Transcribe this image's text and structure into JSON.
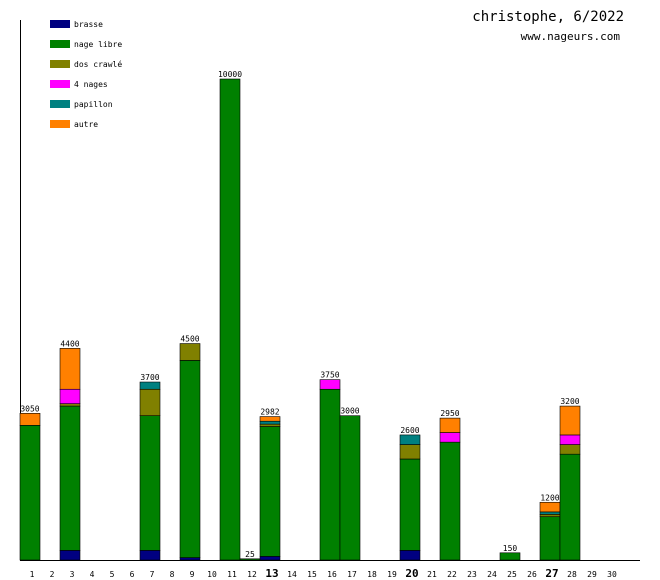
{
  "header": {
    "title": "christophe, 6/2022",
    "subtitle": "www.nageurs.com"
  },
  "chart_data": {
    "type": "bar",
    "stacked": true,
    "ylim": [
      0,
      10000
    ],
    "grid": false,
    "legend_position": "top-left",
    "categories": [
      "1",
      "2",
      "3",
      "4",
      "5",
      "6",
      "7",
      "8",
      "9",
      "10",
      "11",
      "12",
      "13",
      "14",
      "15",
      "16",
      "17",
      "18",
      "19",
      "20",
      "21",
      "22",
      "23",
      "24",
      "25",
      "26",
      "27",
      "28",
      "29",
      "30"
    ],
    "bold_categories": [
      "13",
      "20",
      "27"
    ],
    "totals": [
      3050,
      0,
      4400,
      0,
      0,
      0,
      3700,
      0,
      4500,
      0,
      10000,
      25,
      2982,
      0,
      0,
      3750,
      3000,
      0,
      0,
      2600,
      0,
      2950,
      0,
      0,
      150,
      0,
      1200,
      3200,
      0,
      0
    ],
    "series": [
      {
        "name": "brasse",
        "color": "#000080",
        "values": [
          0,
          0,
          200,
          0,
          0,
          0,
          200,
          0,
          50,
          0,
          0,
          0,
          75,
          0,
          0,
          0,
          0,
          0,
          0,
          200,
          0,
          0,
          0,
          0,
          0,
          0,
          0,
          0,
          0,
          0
        ]
      },
      {
        "name": "nage libre",
        "color": "#008000",
        "values": [
          2800,
          0,
          3000,
          0,
          0,
          0,
          2800,
          0,
          4100,
          0,
          10000,
          25,
          2700,
          0,
          0,
          3550,
          3000,
          0,
          0,
          1900,
          0,
          2450,
          0,
          0,
          150,
          0,
          900,
          2200,
          0,
          0
        ]
      },
      {
        "name": "dos crawlé",
        "color": "#808000",
        "values": [
          0,
          0,
          50,
          0,
          0,
          0,
          550,
          0,
          350,
          0,
          0,
          0,
          50,
          0,
          0,
          0,
          0,
          0,
          0,
          300,
          0,
          0,
          0,
          0,
          0,
          0,
          50,
          200,
          0,
          0
        ]
      },
      {
        "name": "4 nages",
        "color": "#ff00ff",
        "values": [
          0,
          0,
          300,
          0,
          0,
          0,
          0,
          0,
          0,
          0,
          0,
          0,
          0,
          0,
          0,
          200,
          0,
          0,
          0,
          0,
          0,
          200,
          0,
          0,
          0,
          0,
          0,
          200,
          0,
          0
        ]
      },
      {
        "name": "papillon",
        "color": "#008080",
        "values": [
          0,
          0,
          0,
          0,
          0,
          0,
          150,
          0,
          0,
          0,
          0,
          0,
          60,
          0,
          0,
          0,
          0,
          0,
          0,
          200,
          0,
          0,
          0,
          0,
          0,
          0,
          50,
          0,
          0,
          0
        ]
      },
      {
        "name": "autre",
        "color": "#ff8000",
        "values": [
          250,
          0,
          850,
          0,
          0,
          0,
          0,
          0,
          0,
          0,
          0,
          0,
          97,
          0,
          0,
          0,
          0,
          0,
          0,
          0,
          0,
          300,
          0,
          0,
          0,
          0,
          200,
          600,
          0,
          0
        ]
      }
    ]
  }
}
